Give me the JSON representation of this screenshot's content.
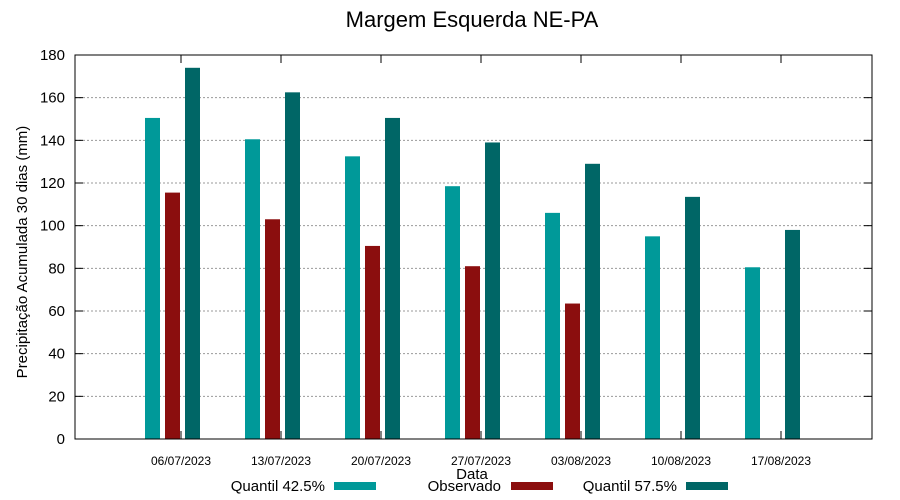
{
  "chart_data": {
    "type": "bar",
    "title": "Margem Esquerda NE-PA",
    "xlabel": "Data",
    "ylabel": "Precipitação Acumulada 30 dias (mm)",
    "ylim": [
      0,
      180
    ],
    "yticks": [
      0,
      20,
      40,
      60,
      80,
      100,
      120,
      140,
      160,
      180
    ],
    "grid": true,
    "legend_position": "bottom",
    "categories": [
      "06/07/2023",
      "13/07/2023",
      "20/07/2023",
      "27/07/2023",
      "03/08/2023",
      "10/08/2023",
      "17/08/2023"
    ],
    "series": [
      {
        "name": "Quantil 42.5%",
        "color": "#009999",
        "values": [
          150.5,
          140.5,
          132.5,
          118.5,
          106,
          95,
          80.5
        ]
      },
      {
        "name": "Observado",
        "color": "#8b0e0e",
        "values": [
          115.5,
          103,
          90.5,
          81,
          63.5,
          null,
          null
        ]
      },
      {
        "name": "Quantil 57.5%",
        "color": "#006666",
        "values": [
          174,
          162.5,
          150.5,
          139,
          129,
          113.5,
          98
        ]
      }
    ]
  }
}
